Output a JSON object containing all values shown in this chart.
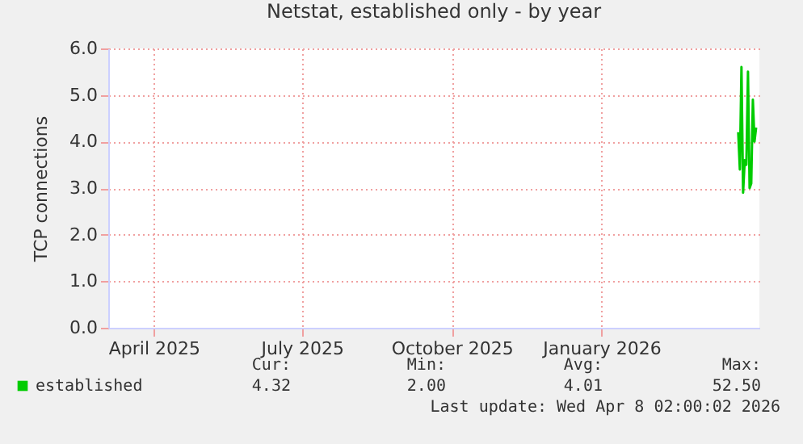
{
  "chart_data": {
    "type": "line",
    "title": "Netstat, established only - by year",
    "ylabel": "TCP connections",
    "x": [
      "2026-03-26",
      "2026-03-27",
      "2026-03-28",
      "2026-03-29",
      "2026-03-30",
      "2026-03-31",
      "2026-04-01",
      "2026-04-02",
      "2026-04-03",
      "2026-04-04",
      "2026-04-05",
      "2026-04-06"
    ],
    "series": [
      {
        "name": "established",
        "color": "#00cc00",
        "values": [
          4.2,
          3.4,
          5.6,
          2.9,
          3.6,
          3.5,
          5.5,
          3.0,
          3.1,
          4.9,
          4.0,
          4.3
        ]
      }
    ],
    "xlim": [
      "2025-03-04",
      "2026-04-08"
    ],
    "xticks": [
      {
        "value": "2025-04-01",
        "label": "April 2025"
      },
      {
        "value": "2025-07-01",
        "label": "July 2025"
      },
      {
        "value": "2025-10-01",
        "label": "October 2025"
      },
      {
        "value": "2026-01-01",
        "label": "January 2026"
      }
    ],
    "ylim": [
      0,
      6
    ],
    "yticks": [
      {
        "value": 0,
        "label": "0.0"
      },
      {
        "value": 1,
        "label": "1.0"
      },
      {
        "value": 2,
        "label": "2.0"
      },
      {
        "value": 3,
        "label": "3.0"
      },
      {
        "value": 4,
        "label": "4.0"
      },
      {
        "value": 5,
        "label": "5.0"
      },
      {
        "value": 6,
        "label": "6.0"
      }
    ],
    "grid": true,
    "legend": "bottom",
    "marker": "none",
    "line_style": "solid",
    "annotations": [
      "Cur:",
      "Min:",
      "Avg:",
      "Max:",
      "4.32",
      "2.00",
      "4.01",
      "52.50",
      "Last update: Wed Apr  8 02:00:02 2026"
    ]
  }
}
